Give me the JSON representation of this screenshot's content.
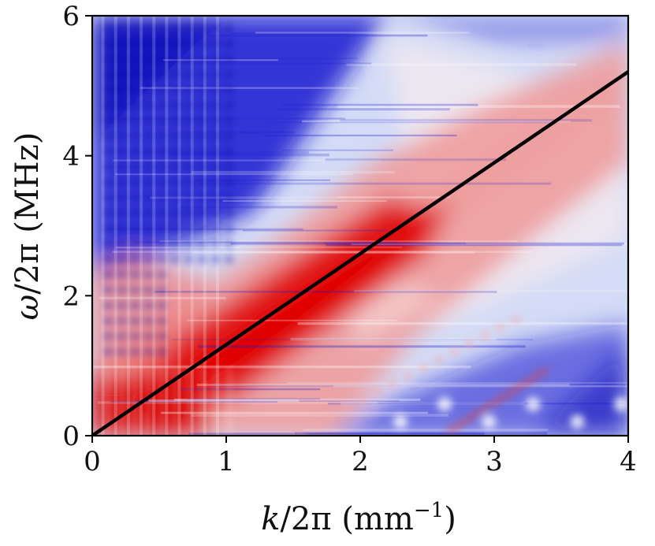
{
  "chart_data": {
    "type": "heatmap",
    "title": "",
    "xlabel": {
      "var": "k",
      "rest": "/2π (mm",
      "sup": "−1",
      "close": ")"
    },
    "ylabel": {
      "var": "ω",
      "rest": "/2π (MHz)"
    },
    "xlim": [
      0,
      4
    ],
    "ylim": [
      0,
      6
    ],
    "x_ticks": [
      "0",
      "1",
      "2",
      "3",
      "4"
    ],
    "y_ticks": [
      "0",
      "2",
      "4",
      "6"
    ],
    "grid": false,
    "legend": "none",
    "colormap": [
      "#1a1ad0",
      "#ffffff",
      "#e00000"
    ],
    "intensity_peak_band": {
      "x": [
        0.0,
        1.0,
        2.0,
        3.0,
        4.0
      ],
      "y": [
        0.0,
        1.3,
        2.6,
        3.9,
        5.2
      ]
    },
    "series": [
      {
        "type": "line",
        "color": "#000000",
        "x": [
          0.0,
          0.5,
          1.0,
          1.5,
          2.0,
          2.5,
          3.0,
          3.5,
          4.0
        ],
        "y": [
          0.0,
          0.65,
          1.3,
          1.95,
          2.6,
          3.25,
          3.9,
          4.55,
          5.2
        ]
      }
    ]
  }
}
